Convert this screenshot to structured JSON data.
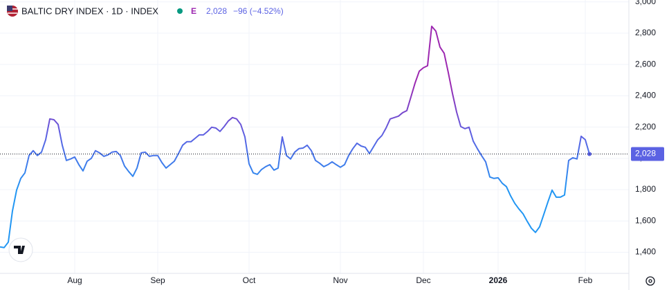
{
  "header": {
    "symbol": "BALTIC DRY INDEX · 1D · INDEX",
    "flag": "E",
    "change": "−96 (−4.52%)"
  },
  "chart_data": {
    "type": "line",
    "x": [
      0,
      1,
      2,
      3,
      4,
      5,
      6,
      7,
      8,
      9,
      10,
      11,
      12,
      13,
      14,
      15,
      16,
      17,
      18,
      19,
      20,
      21,
      22,
      23,
      24,
      25,
      26,
      27,
      28,
      29,
      30,
      31,
      32,
      33,
      34,
      35,
      36,
      37,
      38,
      39,
      40,
      41,
      42,
      43,
      44,
      45,
      46,
      47,
      48,
      49,
      50,
      51,
      52,
      53,
      54,
      55,
      56,
      57,
      58,
      59,
      60,
      61,
      62,
      63,
      64,
      65,
      66,
      67,
      68,
      69,
      70,
      71,
      72,
      73,
      74,
      75,
      76,
      77,
      78,
      79,
      80,
      81,
      82,
      83,
      84,
      85,
      86,
      87,
      88,
      89,
      90,
      91,
      92,
      93,
      94,
      95,
      96,
      97,
      98,
      99,
      100,
      101,
      102,
      103,
      104,
      105,
      106,
      107,
      108,
      109,
      110,
      111,
      112,
      113,
      114,
      115,
      116,
      117,
      118,
      119,
      120,
      121,
      122,
      123,
      124,
      125,
      126,
      127,
      128,
      129,
      130,
      131,
      132,
      133,
      134,
      135,
      136,
      137,
      138,
      139,
      140,
      141,
      142
    ],
    "values": [
      1434,
      1430,
      1465,
      1664,
      1797,
      1872,
      1907,
      2018,
      2049,
      2018,
      2040,
      2119,
      2252,
      2247,
      2217,
      2084,
      1987,
      1996,
      2009,
      1960,
      1920,
      1982,
      2000,
      2049,
      2035,
      2013,
      2022,
      2040,
      2044,
      2018,
      1951,
      1916,
      1885,
      1938,
      2035,
      2040,
      2013,
      2018,
      2018,
      1973,
      1938,
      1960,
      1982,
      2031,
      2084,
      2106,
      2106,
      2128,
      2150,
      2150,
      2172,
      2199,
      2194,
      2172,
      2203,
      2239,
      2261,
      2252,
      2217,
      2137,
      1965,
      1907,
      1898,
      1929,
      1947,
      1960,
      1925,
      1938,
      2137,
      2018,
      1996,
      2040,
      2062,
      2066,
      2084,
      2049,
      1987,
      1969,
      1947,
      1960,
      1978,
      1960,
      1943,
      1960,
      2018,
      2062,
      2097,
      2079,
      2071,
      2031,
      2075,
      2119,
      2146,
      2194,
      2252,
      2261,
      2270,
      2292,
      2305,
      2393,
      2482,
      2557,
      2579,
      2592,
      2844,
      2813,
      2711,
      2672,
      2548,
      2415,
      2296,
      2203,
      2190,
      2199,
      2110,
      2062,
      2018,
      1978,
      1881,
      1872,
      1876,
      1841,
      1819,
      1761,
      1713,
      1677,
      1646,
      1598,
      1554,
      1527,
      1563,
      1642,
      1722,
      1797,
      1752,
      1752,
      1766,
      1987,
      2004,
      1996,
      2141,
      2119,
      2028
    ],
    "last": {
      "value": 2028,
      "label": "2,028"
    },
    "colors": [
      "#2196f3",
      "#5b62e3",
      "#9c27b0"
    ],
    "last_color": "#5b62e3",
    "xlim": [
      0,
      151.5
    ],
    "ylim": [
      1265,
      3012
    ],
    "xticks": [
      {
        "value": 18,
        "label": "Aug"
      },
      {
        "value": 38,
        "label": "Sep"
      },
      {
        "value": 60,
        "label": "Oct"
      },
      {
        "value": 82,
        "label": "Nov"
      },
      {
        "value": 102,
        "label": "Dec"
      },
      {
        "value": 120,
        "label": "2026"
      },
      {
        "value": 141,
        "label": "Feb"
      }
    ],
    "yticks": [
      {
        "value": 1400,
        "label": "1,400"
      },
      {
        "value": 1600,
        "label": "1,600"
      },
      {
        "value": 1800,
        "label": "1,800"
      },
      {
        "value": 2000,
        "label": "2,000"
      },
      {
        "value": 2200,
        "label": "2,200"
      },
      {
        "value": 2400,
        "label": "2,400"
      },
      {
        "value": 2600,
        "label": "2,600"
      },
      {
        "value": 2800,
        "label": "2,800"
      },
      {
        "value": 3000,
        "label": "3,000"
      }
    ],
    "grid": true
  }
}
